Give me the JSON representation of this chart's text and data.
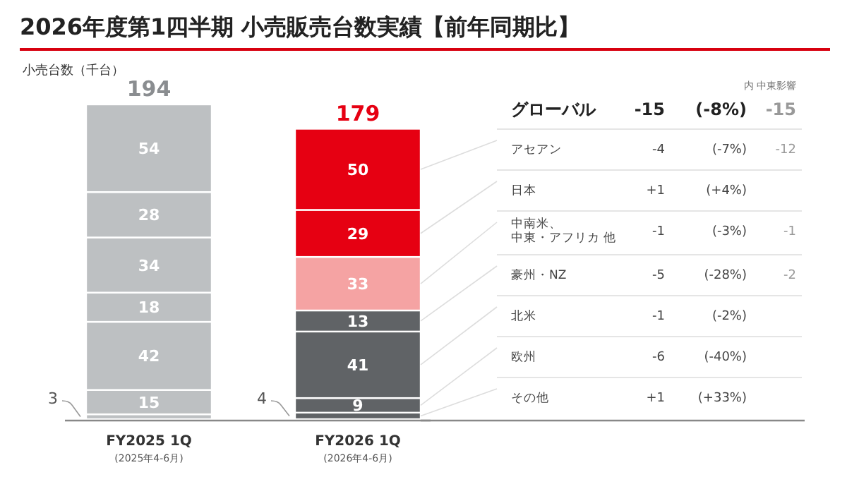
{
  "chart_data": {
    "type": "bar",
    "stacked": true,
    "title": "2026年度第1四半期 小売販売台数実績【前年同期比】",
    "ylabel": "小売台数（千台）",
    "categories": [
      "FY2025 1Q",
      "FY2026 1Q"
    ],
    "series": [
      {
        "name": "その他",
        "colors": [
          "#bdc0c2",
          "#606366"
        ],
        "values": [
          3,
          4
        ]
      },
      {
        "name": "欧州",
        "colors": [
          "#bdc0c2",
          "#606366"
        ],
        "values": [
          15,
          9
        ]
      },
      {
        "name": "北米",
        "colors": [
          "#bdc0c2",
          "#606366"
        ],
        "values": [
          42,
          41
        ]
      },
      {
        "name": "豪州・NZ",
        "colors": [
          "#bdc0c2",
          "#606366"
        ],
        "values": [
          18,
          13
        ]
      },
      {
        "name": "中南米、中東・アフリカ 他",
        "colors": [
          "#bdc0c2",
          "#f5a3a3"
        ],
        "values": [
          34,
          33
        ]
      },
      {
        "name": "日本",
        "colors": [
          "#bdc0c2",
          "#e60012"
        ],
        "values": [
          28,
          29
        ]
      },
      {
        "name": "アセアン",
        "colors": [
          "#bdc0c2",
          "#e60012"
        ],
        "values": [
          54,
          50
        ]
      }
    ],
    "data_labels": true,
    "totals": [
      "194",
      "179"
    ],
    "annotations": [
      "(2025年4-6月)",
      "(2026年4-6月)",
      "内 中東影響",
      "グローバル",
      "-15",
      "(-8%)",
      "-15",
      "-4",
      "(-7%)",
      "-12",
      "+1",
      "(+4%)",
      "-1",
      "(-3%)",
      "-1",
      "-5",
      "(-28%)",
      "-2",
      "-1",
      "(-2%)",
      "-6",
      "(-40%)",
      "+1",
      "(+33%)"
    ]
  }
}
